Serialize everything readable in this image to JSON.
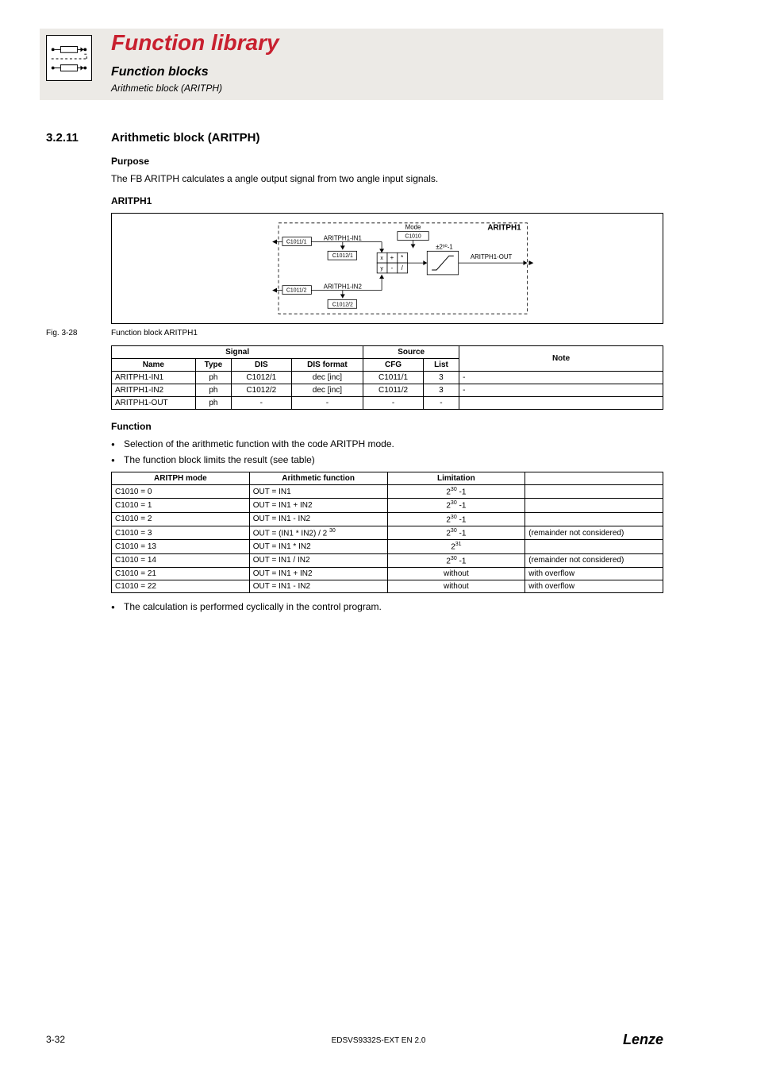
{
  "header": {
    "title": "Function library",
    "subtitle": "Function blocks",
    "subsubtitle": "Arithmetic block (ARITPH)"
  },
  "section": {
    "number": "3.2.11",
    "title": "Arithmetic block (ARITPH)"
  },
  "purpose": {
    "heading": "Purpose",
    "text": "The FB ARITPH calculates a angle output signal from two angle input signals."
  },
  "aritph1": {
    "heading": "ARITPH1"
  },
  "diagram": {
    "block_label": "ARITPH1",
    "mode_label": "Mode",
    "mode_code": "C1010",
    "in1_label": "ARITPH1-IN1",
    "in1_cfg": "C1011/1",
    "in1_dis": "C1012/1",
    "in2_label": "ARITPH1-IN2",
    "in2_cfg": "C1011/2",
    "in2_dis": "C1012/2",
    "out_label": "ARITPH1-OUT",
    "limit_label": "±2³⁰-1",
    "ops": [
      "x",
      "y",
      "+",
      "-",
      "*",
      "/"
    ]
  },
  "figure": {
    "number": "Fig. 3-28",
    "caption": "Function block ARITPH1"
  },
  "signal_table": {
    "headers": {
      "signal": "Signal",
      "source": "Source",
      "note": "Note",
      "name": "Name",
      "type": "Type",
      "dis": "DIS",
      "disformat": "DIS format",
      "cfg": "CFG",
      "list": "List"
    },
    "rows": [
      {
        "name": "ARITPH1-IN1",
        "type": "ph",
        "dis": "C1012/1",
        "disformat": "dec [inc]",
        "cfg": "C1011/1",
        "list": "3",
        "note": "-"
      },
      {
        "name": "ARITPH1-IN2",
        "type": "ph",
        "dis": "C1012/2",
        "disformat": "dec [inc]",
        "cfg": "C1011/2",
        "list": "3",
        "note": "-"
      },
      {
        "name": "ARITPH1-OUT",
        "type": "ph",
        "dis": "-",
        "disformat": "-",
        "cfg": "-",
        "list": "-",
        "note": ""
      }
    ]
  },
  "function": {
    "heading": "Function",
    "bullets_top": [
      "Selection of the arithmetic function with the code ARITPH mode.",
      "The function block limits the result (see table)"
    ],
    "bullets_bottom": [
      "The calculation is performed cyclically in the control program."
    ]
  },
  "mode_table": {
    "headers": {
      "mode": "ARITPH mode",
      "func": "Arithmetic function",
      "limit": "Limitation",
      "extra": ""
    },
    "rows": [
      {
        "mode": "C1010 = 0",
        "func": "OUT = IN1",
        "limit": "2<sup>30</sup> -1",
        "extra": ""
      },
      {
        "mode": "C1010 = 1",
        "func": "OUT = IN1 + IN2",
        "limit": "2<sup>30</sup> -1",
        "extra": ""
      },
      {
        "mode": "C1010 = 2",
        "func": "OUT = IN1 - IN2",
        "limit": "2<sup>30</sup> -1",
        "extra": ""
      },
      {
        "mode": "C1010 = 3",
        "func": "OUT = (IN1 * IN2) / 2 <sup>30</sup>",
        "limit": "2<sup>30</sup> -1",
        "extra": "(remainder not considered)"
      },
      {
        "mode": "C1010 = 13",
        "func": "OUT = IN1 * IN2",
        "limit": "2<sup>31</sup>",
        "extra": ""
      },
      {
        "mode": "C1010 = 14",
        "func": "OUT = IN1 / IN2",
        "limit": "2<sup>30</sup> -1",
        "extra": "(remainder not considered)"
      },
      {
        "mode": "C1010 = 21",
        "func": "OUT = IN1 + IN2",
        "limit": "without",
        "extra": "with overflow"
      },
      {
        "mode": "C1010 = 22",
        "func": "OUT = IN1 - IN2",
        "limit": "without",
        "extra": "with overflow"
      }
    ]
  },
  "footer": {
    "page": "3-32",
    "docid": "EDSVS9332S-EXT EN 2.0",
    "logo": "Lenze"
  },
  "colors": {
    "header_bg": "#eceae6",
    "accent": "#c8202f",
    "border": "#000000"
  }
}
